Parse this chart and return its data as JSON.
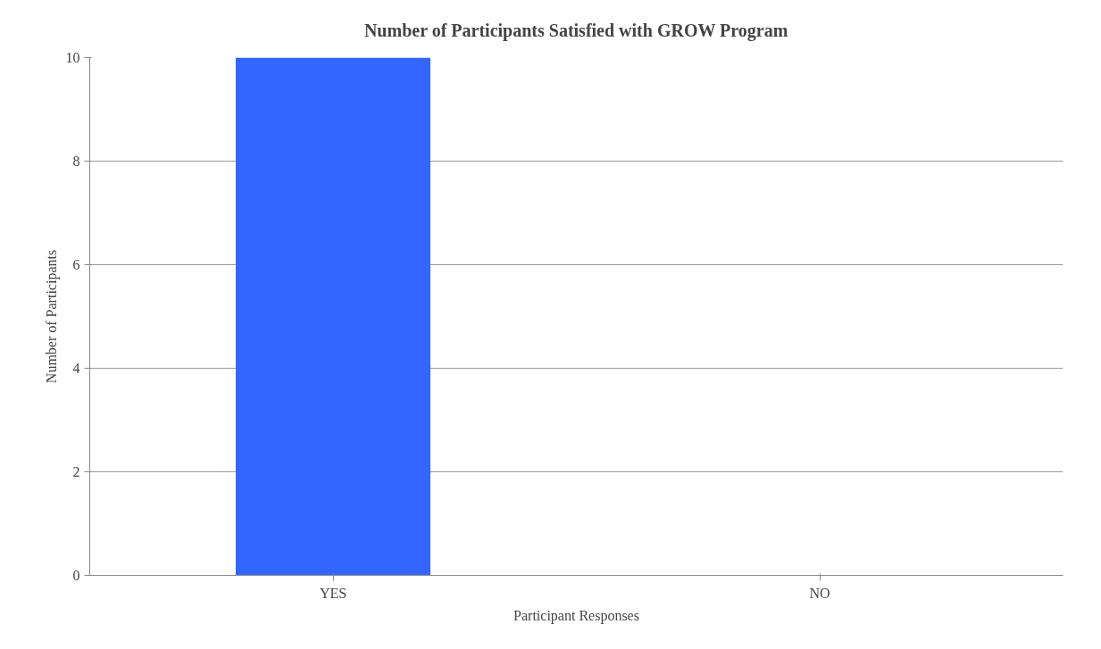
{
  "chart_data": {
    "type": "bar",
    "title": "Number of Participants Satisfied with GROW Program",
    "xlabel": "Participant Responses",
    "ylabel": "Number of Participants",
    "categories": [
      "YES",
      "NO"
    ],
    "series": [
      {
        "color": "#3366ff",
        "values": [
          10,
          0
        ]
      }
    ],
    "ylim": [
      0,
      10
    ],
    "yticks": [
      0,
      2,
      4,
      6,
      8,
      10
    ],
    "grid": "y"
  }
}
